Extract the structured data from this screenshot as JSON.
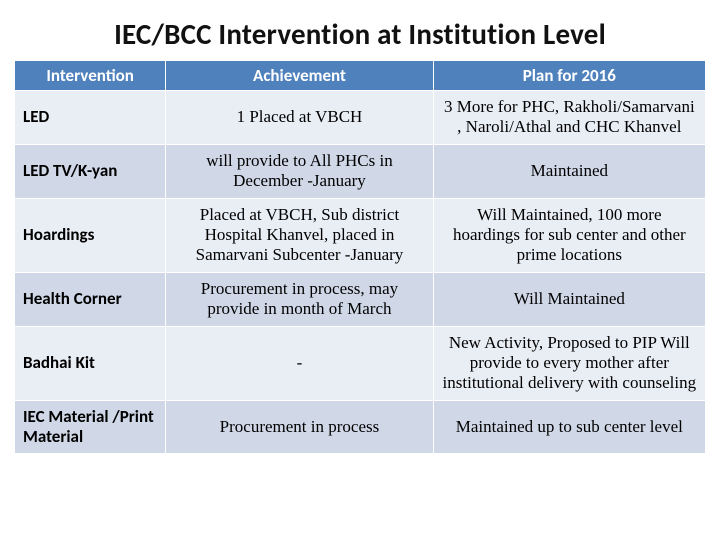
{
  "title": "IEC/BCC Intervention at Institution Level",
  "columns": [
    "Intervention",
    "Achievement",
    "Plan for  2016"
  ],
  "rows": [
    {
      "intervention": "LED",
      "achievement": "1 Placed at VBCH",
      "plan": "3 More  for PHC, Rakholi/Samarvani , Naroli/Athal and CHC Khanvel"
    },
    {
      "intervention": "LED TV/K-yan",
      "achievement": "will provide to All PHCs in December -January",
      "plan": "Maintained"
    },
    {
      "intervention": "Hoardings",
      "achievement": "Placed at VBCH,  Sub district Hospital Khanvel,  placed in Samarvani  Subcenter -January",
      "plan": "Will Maintained, 100 more hoardings for sub center and other  prime locations"
    },
    {
      "intervention": "Health Corner",
      "achievement": "Procurement in process, may provide in month of March",
      "plan": "Will Maintained"
    },
    {
      "intervention": "Badhai Kit",
      "achievement": "-",
      "plan": "New Activity, Proposed to PIP Will provide to every mother after institutional delivery with counseling"
    },
    {
      "intervention": "IEC Material /Print Material",
      "achievement": "Procurement in process",
      "plan": "Maintained up to sub center level"
    }
  ],
  "colors": {
    "header_bg": "#4f81bd",
    "odd_row_bg": "#e9edf4",
    "even_row_bg": "#d0d8e8",
    "grid_border": "#ffffff",
    "title_color": "#111111",
    "body_text": "#000000",
    "header_text": "#ffffff"
  }
}
